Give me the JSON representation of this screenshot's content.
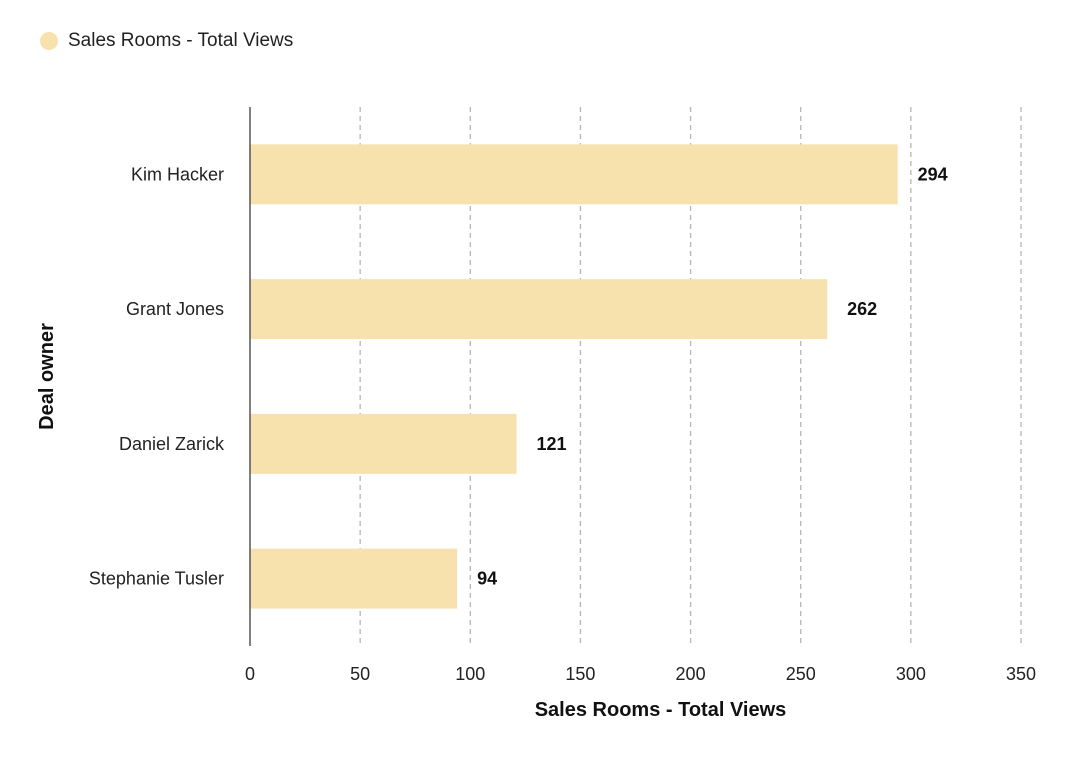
{
  "chart_data": {
    "type": "bar",
    "orientation": "horizontal",
    "categories": [
      "Kim Hacker",
      "Grant Jones",
      "Daniel Zarick",
      "Stephanie Tusler"
    ],
    "series": [
      {
        "name": "Sales Rooms - Total Views",
        "values": [
          294,
          262,
          121,
          94
        ],
        "color": "#f7e2ae"
      }
    ],
    "xlabel": "Sales Rooms - Total Views",
    "ylabel": "Deal owner",
    "xlim": [
      0,
      350
    ],
    "xticks": [
      0,
      50,
      100,
      150,
      200,
      250,
      300,
      350
    ],
    "grid": "vertical-dashed",
    "legend": "top-left",
    "data_labels": true
  }
}
